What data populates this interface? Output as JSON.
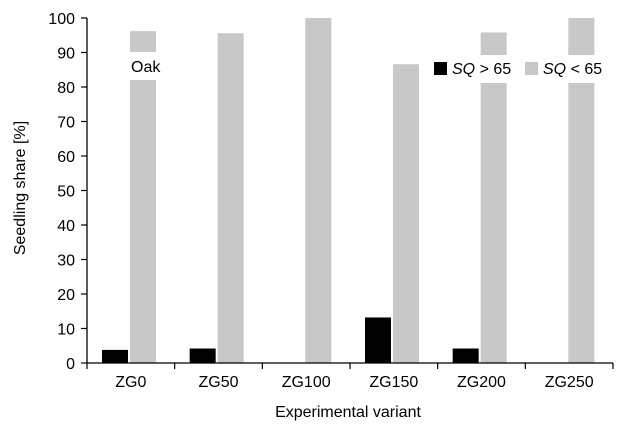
{
  "chart_data": {
    "type": "bar",
    "categories": [
      "ZG0",
      "ZG50",
      "ZG100",
      "ZG150",
      "ZG200",
      "ZG250"
    ],
    "series": [
      {
        "name_var": "SQ",
        "name_rest": " > 65",
        "color": "#000000",
        "values": [
          3.8,
          4.2,
          0,
          13.2,
          4.2,
          0
        ]
      },
      {
        "name_var": "SQ",
        "name_rest": " < 65",
        "color": "#c8c8c8",
        "values": [
          96.2,
          95.6,
          100,
          86.6,
          95.8,
          100
        ]
      }
    ],
    "xlabel": "Experimental variant",
    "ylabel": "Seedling share [%]",
    "ylim": [
      0,
      100
    ],
    "yticks": [
      0,
      10,
      20,
      30,
      40,
      50,
      60,
      70,
      80,
      90,
      100
    ],
    "annotation": "Oak",
    "legend_position": "top-right",
    "grid": false
  }
}
